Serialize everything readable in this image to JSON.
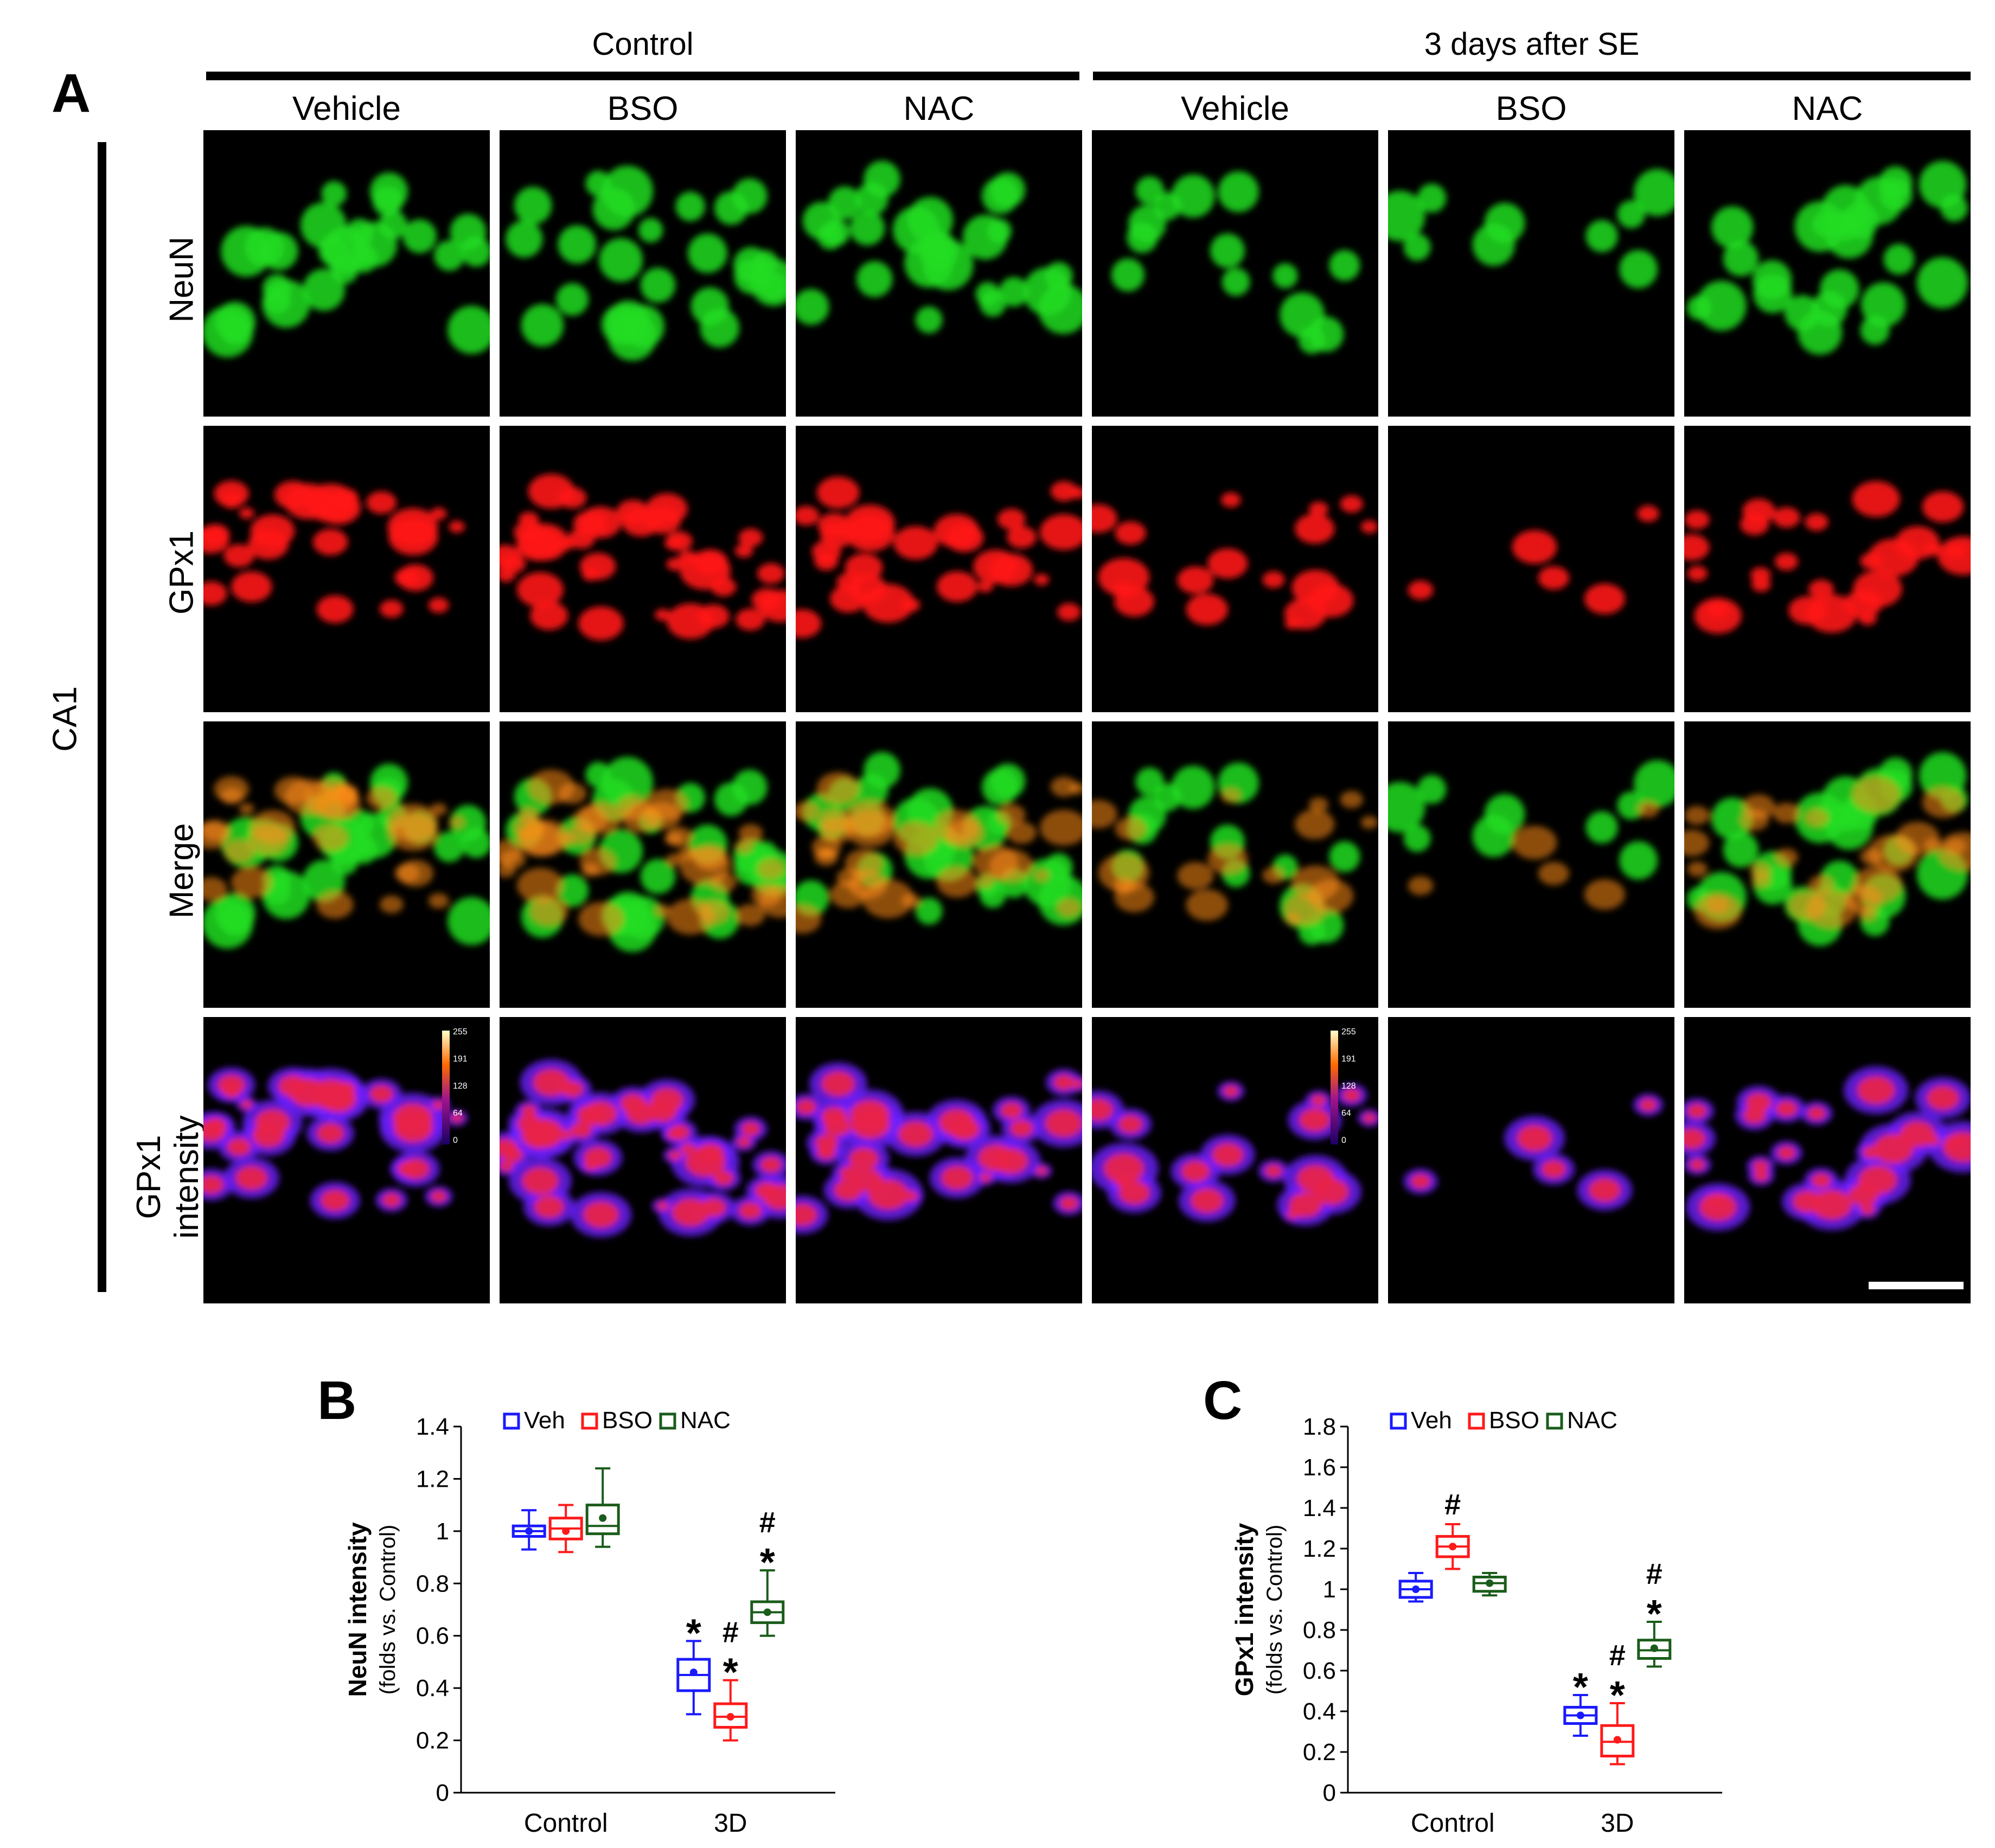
{
  "panels": {
    "a": "A",
    "b": "B",
    "c": "C"
  },
  "groups": [
    "Control",
    "3 days after SE"
  ],
  "columns": [
    "Vehicle",
    "BSO",
    "NAC",
    "Vehicle",
    "BSO",
    "NAC"
  ],
  "region_label": "CA1",
  "rows": [
    "NeuN",
    "GPx1",
    "Merge",
    "GPx1 intensity"
  ],
  "rows_lines": [
    [
      "NeuN"
    ],
    [
      "GPx1"
    ],
    [
      "Merge"
    ],
    [
      "GPx1",
      "intensity"
    ]
  ],
  "colorbar_ticks": [
    "255",
    "191",
    "128",
    "64",
    "0"
  ],
  "colors": {
    "veh": "#1a1aff",
    "bso": "#ff1a1a",
    "nac": "#1a5c1a",
    "neun": "#22dd22",
    "gpx1": "#ff1a1a",
    "heat_low": "#6a1fff",
    "heat_high": "#e8234a"
  },
  "chart_data": [
    {
      "panel": "B",
      "type": "box",
      "ylabel": "NeuN intensity",
      "ylabel_sub": "(folds vs. Control)",
      "ylim": [
        0,
        1.4
      ],
      "yticks": [
        0,
        0.2,
        0.4,
        0.6,
        0.8,
        1,
        1.2,
        1.4
      ],
      "ytick_labels": [
        "0",
        "0.2",
        "0.4",
        "0.6",
        "0.8",
        "1",
        "1.2",
        "1.4"
      ],
      "categories": [
        "Control",
        "3D"
      ],
      "legend": [
        "Veh",
        "BSO",
        "NAC"
      ],
      "series": [
        {
          "name": "Veh",
          "boxes": [
            {
              "min": 0.93,
              "q1": 0.98,
              "median": 1.0,
              "q3": 1.02,
              "max": 1.08,
              "mean": 1.0
            },
            {
              "min": 0.3,
              "q1": 0.39,
              "median": 0.45,
              "q3": 0.51,
              "max": 0.58,
              "mean": 0.46
            }
          ]
        },
        {
          "name": "BSO",
          "boxes": [
            {
              "min": 0.92,
              "q1": 0.97,
              "median": 1.01,
              "q3": 1.05,
              "max": 1.1,
              "mean": 1.0
            },
            {
              "min": 0.2,
              "q1": 0.25,
              "median": 0.29,
              "q3": 0.34,
              "max": 0.43,
              "mean": 0.29
            }
          ]
        },
        {
          "name": "NAC",
          "boxes": [
            {
              "min": 0.94,
              "q1": 0.99,
              "median": 1.02,
              "q3": 1.1,
              "max": 1.24,
              "mean": 1.05
            },
            {
              "min": 0.6,
              "q1": 0.65,
              "median": 0.69,
              "q3": 0.73,
              "max": 0.85,
              "mean": 0.69
            }
          ]
        }
      ],
      "annotations": [
        {
          "category": "3D",
          "series": "Veh",
          "text": "*"
        },
        {
          "category": "3D",
          "series": "BSO",
          "text": "*"
        },
        {
          "category": "3D",
          "series": "BSO",
          "text": "#"
        },
        {
          "category": "3D",
          "series": "NAC",
          "text": "*"
        },
        {
          "category": "3D",
          "series": "NAC",
          "text": "#"
        }
      ]
    },
    {
      "panel": "C",
      "type": "box",
      "ylabel": "GPx1 intensity",
      "ylabel_sub": "(folds vs. Control)",
      "ylim": [
        0,
        1.8
      ],
      "yticks": [
        0,
        0.2,
        0.4,
        0.6,
        0.8,
        1,
        1.2,
        1.4,
        1.6,
        1.8
      ],
      "ytick_labels": [
        "0",
        "0.2",
        "0.4",
        "0.6",
        "0.8",
        "1",
        "1.2",
        "1.4",
        "1.6",
        "1.8"
      ],
      "categories": [
        "Control",
        "3D"
      ],
      "legend": [
        "Veh",
        "BSO",
        "NAC"
      ],
      "series": [
        {
          "name": "Veh",
          "boxes": [
            {
              "min": 0.94,
              "q1": 0.96,
              "median": 1.0,
              "q3": 1.04,
              "max": 1.08,
              "mean": 1.0
            },
            {
              "min": 0.28,
              "q1": 0.34,
              "median": 0.38,
              "q3": 0.42,
              "max": 0.48,
              "mean": 0.38
            }
          ]
        },
        {
          "name": "BSO",
          "boxes": [
            {
              "min": 1.1,
              "q1": 1.16,
              "median": 1.21,
              "q3": 1.26,
              "max": 1.32,
              "mean": 1.21
            },
            {
              "min": 0.14,
              "q1": 0.18,
              "median": 0.25,
              "q3": 0.33,
              "max": 0.44,
              "mean": 0.26
            }
          ]
        },
        {
          "name": "NAC",
          "boxes": [
            {
              "min": 0.97,
              "q1": 0.99,
              "median": 1.03,
              "q3": 1.06,
              "max": 1.08,
              "mean": 1.03
            },
            {
              "min": 0.62,
              "q1": 0.66,
              "median": 0.7,
              "q3": 0.75,
              "max": 0.84,
              "mean": 0.71
            }
          ]
        }
      ],
      "annotations": [
        {
          "category": "Control",
          "series": "BSO",
          "text": "#"
        },
        {
          "category": "3D",
          "series": "Veh",
          "text": "*"
        },
        {
          "category": "3D",
          "series": "BSO",
          "text": "*"
        },
        {
          "category": "3D",
          "series": "BSO",
          "text": "#"
        },
        {
          "category": "3D",
          "series": "NAC",
          "text": "*"
        },
        {
          "category": "3D",
          "series": "NAC",
          "text": "#"
        }
      ]
    }
  ]
}
